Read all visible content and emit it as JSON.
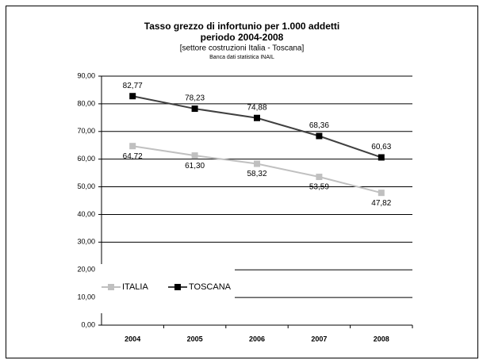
{
  "chart_data": {
    "type": "line",
    "title": "Tasso grezzo di infortunio per 1.000 addetti",
    "subtitle": "periodo 2004-2008",
    "subtitle2": "[settore costruzioni Italia - Toscana]",
    "source": "Banca dati statistica INAIL",
    "categories": [
      "2004",
      "2005",
      "2006",
      "2007",
      "2008"
    ],
    "series": [
      {
        "name": "ITALIA",
        "color": "#c0c0c0",
        "values": [
          64.72,
          61.3,
          58.32,
          53.59,
          47.82
        ],
        "value_labels": [
          "64,72",
          "61,30",
          "58,32",
          "53,59",
          "47,82"
        ]
      },
      {
        "name": "TOSCANA",
        "color": "#404040",
        "marker_color": "#000000",
        "values": [
          82.77,
          78.23,
          74.88,
          68.36,
          60.63
        ],
        "value_labels": [
          "82,77",
          "78,23",
          "74,88",
          "68,36",
          "60,63"
        ]
      }
    ],
    "ylim": [
      0,
      90
    ],
    "yticks": [
      {
        "value": 0,
        "label": "0,00"
      },
      {
        "value": 10,
        "label": "10,00"
      },
      {
        "value": 20,
        "label": "20,00"
      },
      {
        "value": 30,
        "label": "30,00"
      },
      {
        "value": 40,
        "label": "40,00"
      },
      {
        "value": 50,
        "label": "50,00"
      },
      {
        "value": 60,
        "label": "60,00"
      },
      {
        "value": 70,
        "label": "70,00"
      },
      {
        "value": 80,
        "label": "80,00"
      },
      {
        "value": 90,
        "label": "90,00"
      }
    ],
    "grid": true,
    "legend": "lower left"
  }
}
